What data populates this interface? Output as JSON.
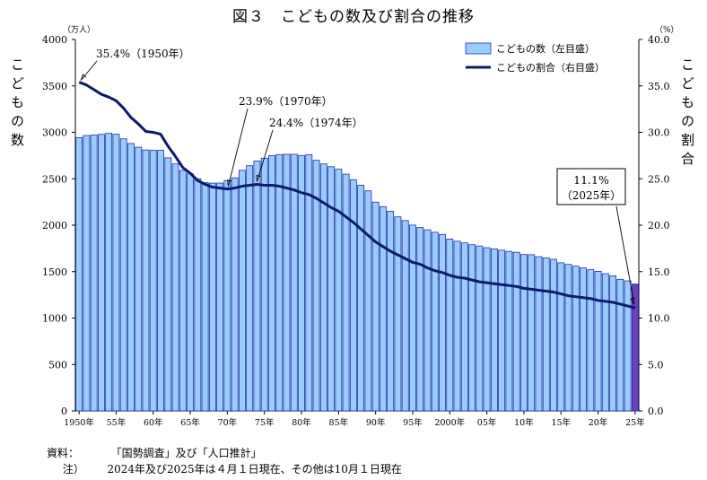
{
  "title": "図３　こどもの数及び割合の推移",
  "left_axis_label": "こどもの数",
  "right_axis_label": "こどもの割合",
  "left_unit": "（万人）",
  "right_unit": "（%）",
  "notes": {
    "source_label": "資料：",
    "source_text": "「国勢調査」及び「人口推計」",
    "note_label": "注）",
    "note_text": "2024年及び2025年は４月１日現在、その他は10月１日現在"
  },
  "colors": {
    "bar_fill": "#99ccff",
    "bar_stroke": "#1f2fa8",
    "bar_highlight_fill": "#6a3fc0",
    "line": "#0b1a6e"
  },
  "chart_data": {
    "type": "bar",
    "legend_position": "top-right",
    "legend": [
      "こどもの数（左目盛）",
      "こどもの割合（右目盛）"
    ],
    "y_left": {
      "lim": [
        0,
        4000
      ],
      "ticks": [
        0,
        500,
        1000,
        1500,
        2000,
        2500,
        3000,
        3500,
        4000
      ]
    },
    "y_right": {
      "lim": [
        0,
        40
      ],
      "ticks": [
        "0.0",
        "5.0",
        "10.0",
        "15.0",
        "20.0",
        "25.0",
        "30.0",
        "35.0",
        "40.0"
      ]
    },
    "x_tick_labels": [
      {
        "year": 1950,
        "label": "1950年"
      },
      {
        "year": 1955,
        "label": "55年"
      },
      {
        "year": 1960,
        "label": "60年"
      },
      {
        "year": 1965,
        "label": "65年"
      },
      {
        "year": 1970,
        "label": "70年"
      },
      {
        "year": 1975,
        "label": "75年"
      },
      {
        "year": 1980,
        "label": "80年"
      },
      {
        "year": 1985,
        "label": "85年"
      },
      {
        "year": 1990,
        "label": "90年"
      },
      {
        "year": 1995,
        "label": "95年"
      },
      {
        "year": 2000,
        "label": "2000年"
      },
      {
        "year": 2005,
        "label": "05年"
      },
      {
        "year": 2010,
        "label": "10年"
      },
      {
        "year": 2015,
        "label": "15年"
      },
      {
        "year": 2020,
        "label": "20年"
      },
      {
        "year": 2025,
        "label": "25年"
      }
    ],
    "years": [
      1950,
      1951,
      1952,
      1953,
      1954,
      1955,
      1956,
      1957,
      1958,
      1959,
      1960,
      1961,
      1962,
      1963,
      1964,
      1965,
      1966,
      1967,
      1968,
      1969,
      1970,
      1971,
      1972,
      1973,
      1974,
      1975,
      1976,
      1977,
      1978,
      1979,
      1980,
      1981,
      1982,
      1983,
      1984,
      1985,
      1986,
      1987,
      1988,
      1989,
      1990,
      1991,
      1992,
      1993,
      1994,
      1995,
      1996,
      1997,
      1998,
      1999,
      2000,
      2001,
      2002,
      2003,
      2004,
      2005,
      2006,
      2007,
      2008,
      2009,
      2010,
      2011,
      2012,
      2013,
      2014,
      2015,
      2016,
      2017,
      2018,
      2019,
      2020,
      2021,
      2022,
      2023,
      2024,
      2025
    ],
    "series": [
      {
        "name": "こどもの数（左目盛）",
        "axis": "left",
        "values": [
          2943,
          2966,
          2971,
          2978,
          2989,
          2980,
          2930,
          2880,
          2840,
          2810,
          2807,
          2807,
          2726,
          2660,
          2590,
          2553,
          2500,
          2458,
          2453,
          2454,
          2482,
          2510,
          2591,
          2641,
          2690,
          2722,
          2750,
          2760,
          2764,
          2764,
          2751,
          2760,
          2700,
          2660,
          2630,
          2603,
          2550,
          2490,
          2430,
          2370,
          2249,
          2200,
          2150,
          2090,
          2050,
          2001,
          1976,
          1951,
          1924,
          1900,
          1851,
          1827,
          1810,
          1790,
          1776,
          1758,
          1745,
          1730,
          1718,
          1708,
          1684,
          1682,
          1661,
          1648,
          1633,
          1595,
          1578,
          1559,
          1541,
          1521,
          1503,
          1478,
          1455,
          1417,
          1401,
          1366
        ]
      },
      {
        "name": "こどもの割合（右目盛）",
        "axis": "right",
        "values": [
          35.4,
          35.1,
          34.6,
          34.1,
          33.8,
          33.4,
          32.6,
          31.6,
          30.9,
          30.1,
          30.0,
          29.8,
          28.5,
          27.4,
          26.2,
          25.6,
          24.8,
          24.4,
          24.1,
          24.0,
          23.9,
          24.0,
          24.2,
          24.3,
          24.4,
          24.3,
          24.3,
          24.2,
          24.0,
          23.8,
          23.5,
          23.3,
          22.9,
          22.4,
          21.9,
          21.5,
          20.9,
          20.3,
          19.6,
          18.9,
          18.2,
          17.7,
          17.2,
          16.8,
          16.4,
          16.0,
          15.8,
          15.4,
          15.1,
          14.9,
          14.6,
          14.4,
          14.3,
          14.1,
          13.9,
          13.8,
          13.7,
          13.6,
          13.5,
          13.4,
          13.2,
          13.1,
          13.0,
          12.9,
          12.8,
          12.6,
          12.4,
          12.3,
          12.2,
          12.1,
          11.9,
          11.8,
          11.7,
          11.5,
          11.3,
          11.1
        ]
      }
    ],
    "annotations": [
      {
        "text": "35.4%（1950年）",
        "year": 1950,
        "value": 35.4,
        "boxed": false
      },
      {
        "text": "23.9%（1970年）",
        "year": 1970,
        "value": 23.9,
        "boxed": false
      },
      {
        "text": "24.4%（1974年）",
        "year": 1974,
        "value": 24.4,
        "boxed": false
      },
      {
        "text": "11.1%",
        "text2": "（2025年）",
        "year": 2025,
        "value": 11.1,
        "boxed": true
      }
    ]
  }
}
